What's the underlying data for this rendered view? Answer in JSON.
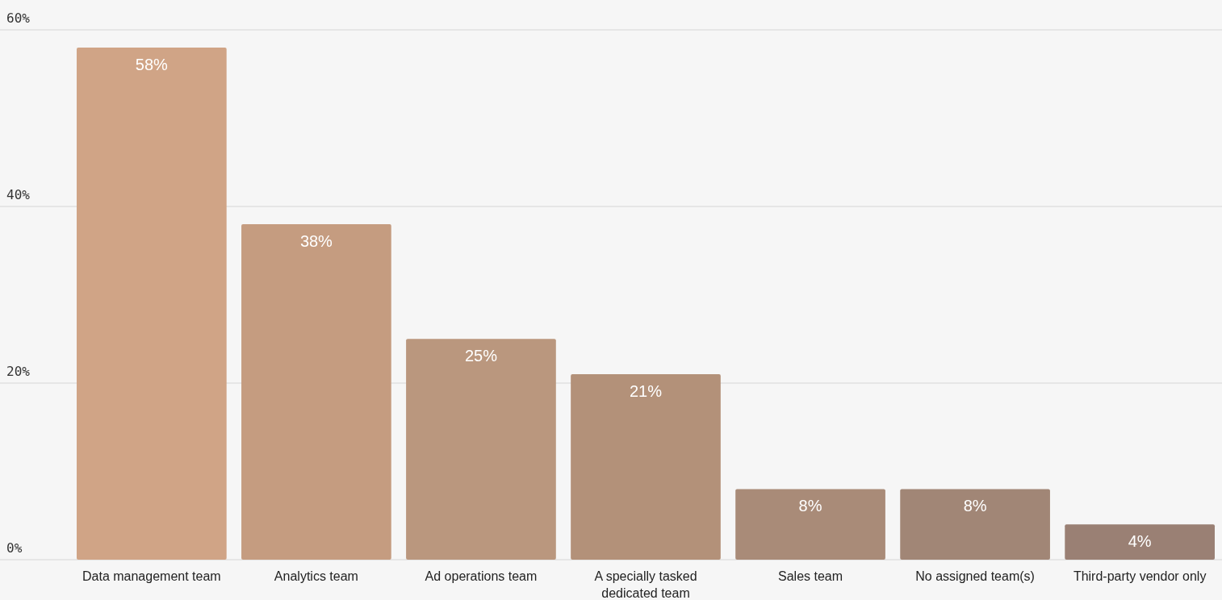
{
  "chart_data": {
    "type": "bar",
    "categories": [
      "Data management team",
      "Analytics team",
      "Ad operations team",
      "A specially tasked dedicated team",
      "Sales team",
      "No assigned team(s)",
      "Third-party vendor only"
    ],
    "values": [
      58,
      38,
      25,
      21,
      8,
      8,
      4
    ],
    "colors": [
      "#d0a486",
      "#c59c80",
      "#ba977e",
      "#b39179",
      "#a98b78",
      "#a18676",
      "#9a8074"
    ],
    "ylim": [
      0,
      60
    ],
    "yticks": [
      {
        "value": 0,
        "label": "0%"
      },
      {
        "value": 20,
        "label": "20%"
      },
      {
        "value": 40,
        "label": "40%"
      },
      {
        "value": 60,
        "label": "60%"
      }
    ],
    "grid": "y",
    "value_labels": [
      "58%",
      "38%",
      "25%",
      "21%",
      "8%",
      "8%",
      "4%"
    ]
  }
}
